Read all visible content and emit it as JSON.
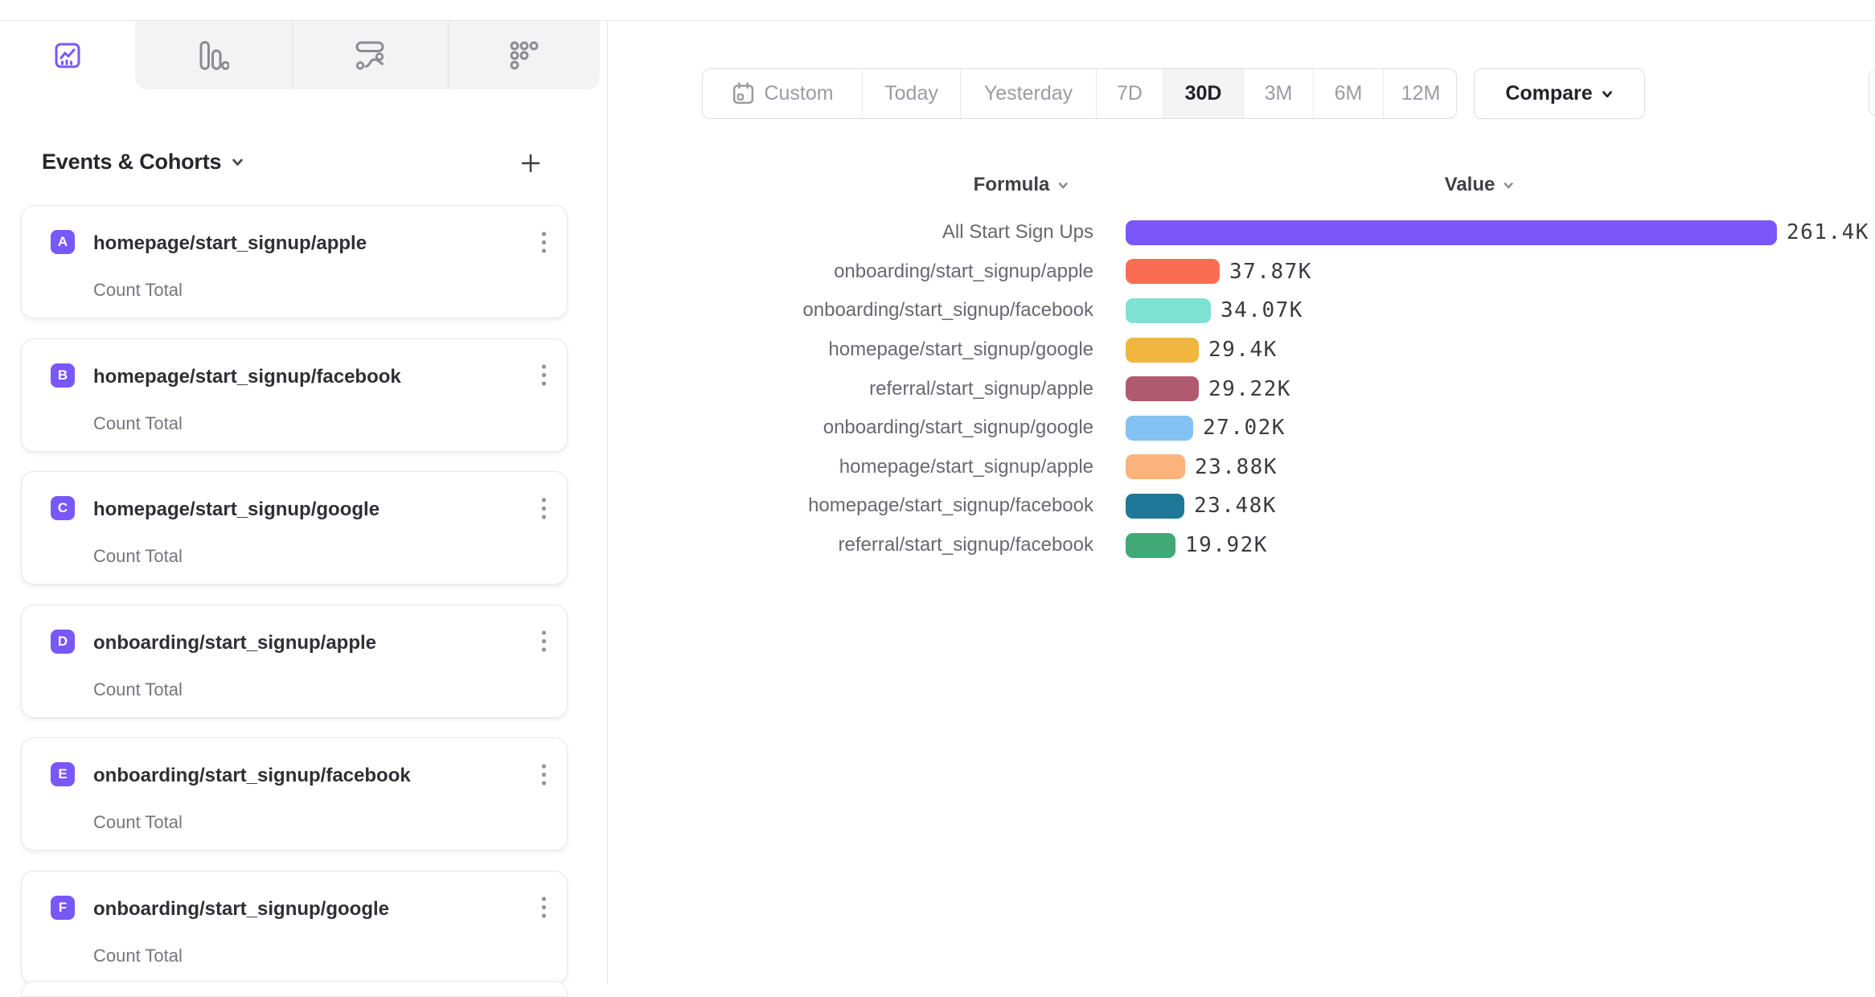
{
  "app": {
    "accent_color": "#7957F8"
  },
  "chart_tabs": [
    {
      "name": "insights-line",
      "active": true
    },
    {
      "name": "bar-chart",
      "active": false
    },
    {
      "name": "flows",
      "active": false
    },
    {
      "name": "retention",
      "active": false
    }
  ],
  "sidebar": {
    "panel_title": "Events & Cohorts",
    "badge_color": "#7957F8",
    "cards": [
      {
        "letter": "A",
        "title": "homepage/start_signup/apple",
        "subtitle": "Count Total"
      },
      {
        "letter": "B",
        "title": "homepage/start_signup/facebook",
        "subtitle": "Count Total"
      },
      {
        "letter": "C",
        "title": "homepage/start_signup/google",
        "subtitle": "Count Total"
      },
      {
        "letter": "D",
        "title": "onboarding/start_signup/apple",
        "subtitle": "Count Total"
      },
      {
        "letter": "E",
        "title": "onboarding/start_signup/facebook",
        "subtitle": "Count Total"
      },
      {
        "letter": "F",
        "title": "onboarding/start_signup/google",
        "subtitle": "Count Total"
      }
    ]
  },
  "toolbar": {
    "date_ranges": [
      "Custom",
      "Today",
      "Yesterday",
      "7D",
      "30D",
      "3M",
      "6M",
      "12M"
    ],
    "active_range": "30D",
    "compare_label": "Compare"
  },
  "chart_header": {
    "formula_label": "Formula",
    "value_label": "Value"
  },
  "chart_data": {
    "type": "bar",
    "orientation": "horizontal",
    "title": "",
    "xlabel": "Value",
    "ylabel": "Formula",
    "grid": false,
    "max_value": 261400,
    "categories": [
      "All Start Sign Ups",
      "onboarding/start_signup/apple",
      "onboarding/start_signup/facebook",
      "homepage/start_signup/google",
      "referral/start_signup/apple",
      "onboarding/start_signup/google",
      "homepage/start_signup/apple",
      "homepage/start_signup/facebook",
      "referral/start_signup/facebook"
    ],
    "values": [
      261400,
      37870,
      34070,
      29400,
      29220,
      27020,
      23880,
      23480,
      19920
    ],
    "value_labels": [
      "261.4K",
      "37.87K",
      "34.07K",
      "29.4K",
      "29.22K",
      "27.02K",
      "23.88K",
      "23.48K",
      "19.92K"
    ],
    "colors": [
      "#7957F8",
      "#F96E53",
      "#7DE2D1",
      "#F0B63D",
      "#B05A70",
      "#84C2F4",
      "#FBB37A",
      "#1F7897",
      "#41A975"
    ]
  }
}
